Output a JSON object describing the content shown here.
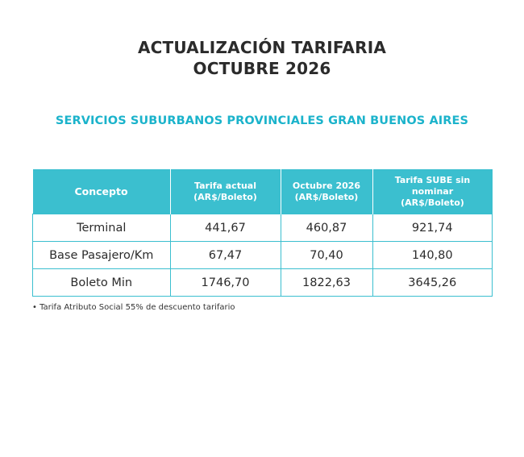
{
  "header": {
    "title_line1": "ACTUALIZACIÓN TARIFARIA",
    "title_line2": "OCTUBRE 2026",
    "subtitle": "SERVICIOS SUBURBANOS PROVINCIALES GRAN BUENOS AIRES"
  },
  "table": {
    "headers": [
      {
        "line1": "Concepto",
        "line2": ""
      },
      {
        "line1": "Tarifa actual",
        "line2": "(AR$/Boleto)"
      },
      {
        "line1": "Octubre 2026",
        "line2": "(AR$/Boleto)"
      },
      {
        "line1": "Tarifa SUBE sin nominar",
        "line2": "(AR$/Boleto)"
      }
    ],
    "rows": [
      [
        "Terminal",
        "441,67",
        "460,87",
        "921,74"
      ],
      [
        "Base Pasajero/Km",
        "67,47",
        "70,40",
        "140,80"
      ],
      [
        "Boleto Min",
        "1746,70",
        "1822,63",
        "3645,26"
      ]
    ]
  },
  "footnote": "• Tarifa Atributo Social 55% de descuento tarifario",
  "colors": {
    "accent": "#3bbfcf",
    "subtitle": "#1bb3cb",
    "title": "#2b2b2b"
  }
}
